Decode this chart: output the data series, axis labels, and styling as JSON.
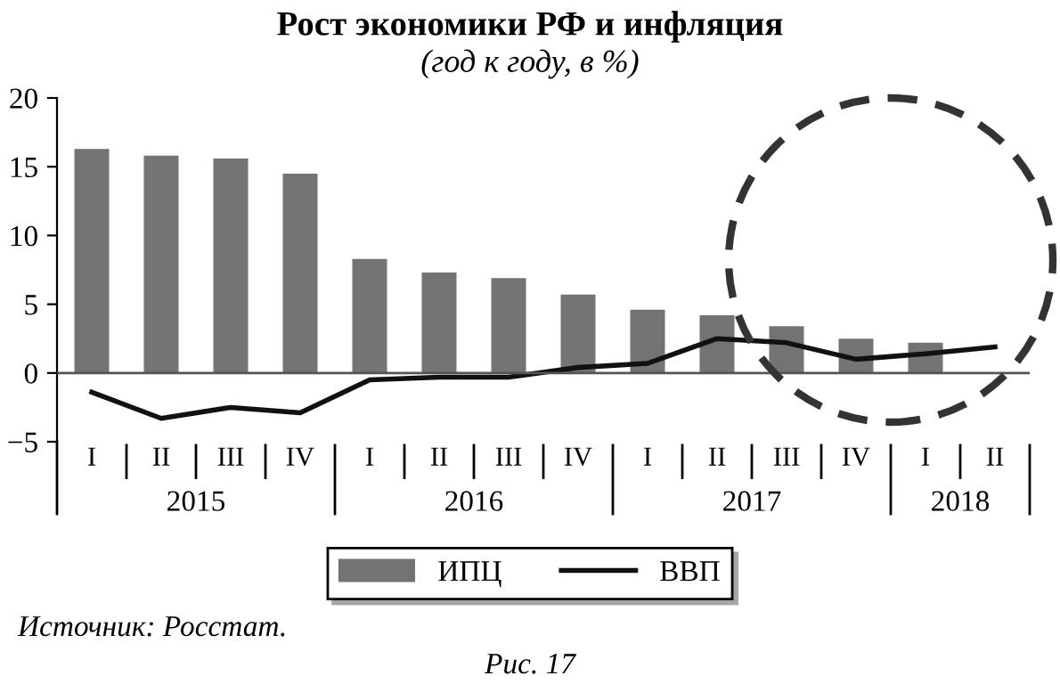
{
  "chart_data": {
    "type": "bar",
    "title": "Рост экономики РФ и инфляция",
    "subtitle": "(год к году, в %)",
    "categories": [
      "I",
      "II",
      "III",
      "IV",
      "I",
      "II",
      "III",
      "IV",
      "I",
      "II",
      "III",
      "IV",
      "I",
      "II"
    ],
    "series": [
      {
        "name": "ИПЦ",
        "color": "#737373",
        "values": [
          16.3,
          15.8,
          15.6,
          14.5,
          8.3,
          7.3,
          6.9,
          5.7,
          4.6,
          4.2,
          3.4,
          2.5,
          2.2,
          null
        ]
      },
      {
        "name": "ВВП",
        "type": "line",
        "color": "#111111",
        "values": [
          -1.4,
          -3.3,
          -2.5,
          -2.9,
          -0.5,
          -0.3,
          -0.3,
          0.4,
          0.7,
          2.5,
          2.2,
          1.0,
          1.4,
          1.9
        ]
      }
    ],
    "ylim": [
      -5,
      20
    ],
    "yticks": [
      -5,
      0,
      5,
      10,
      15,
      20
    ],
    "ref_lines": [
      {
        "axis": "y",
        "value": 0,
        "color": "#555555"
      }
    ],
    "legend": "bottom",
    "grid": false,
    "marker": "none",
    "line_style": "solid",
    "annotations": [
      "2015",
      "2016",
      "2017",
      "2018",
      "Источник: Росстат.",
      "Рис. 17"
    ]
  }
}
